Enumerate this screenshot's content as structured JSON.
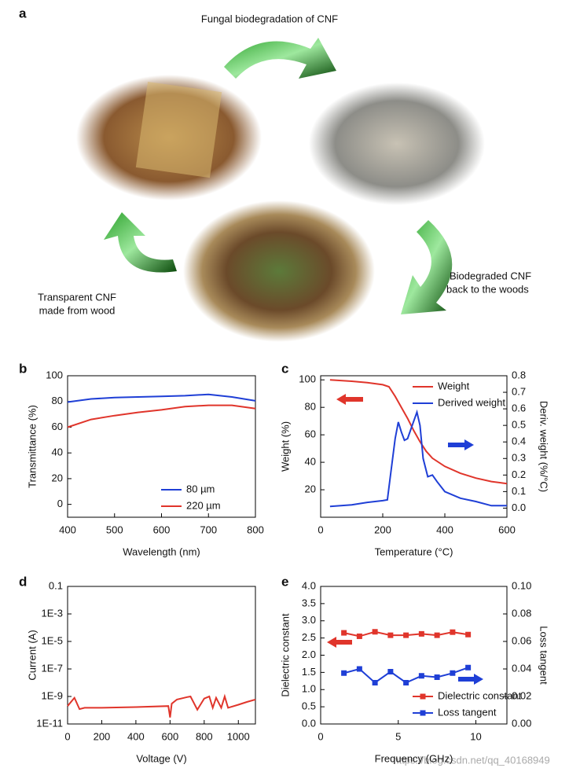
{
  "panel_a": {
    "label": "a",
    "top_caption": "Fungal biodegradation of CNF",
    "right_caption": [
      "Biodegraded CNF",
      "back to the woods"
    ],
    "left_caption": [
      "Transparent CNF",
      "made from wood"
    ]
  },
  "chart_data": [
    {
      "type": "line",
      "label": "b",
      "xlabel": "Wavelength (nm)",
      "ylabel": "Transmittance (%)",
      "x": [
        400,
        450,
        500,
        550,
        600,
        650,
        700,
        750,
        800
      ],
      "series": [
        {
          "name": "80 µm",
          "color": "#1f3fd6",
          "values": [
            79.5,
            82,
            83,
            83.5,
            84,
            84.5,
            85.5,
            83.5,
            80.5
          ]
        },
        {
          "name": "220 µm",
          "color": "#e0352b",
          "values": [
            60,
            66,
            69,
            71.5,
            73.5,
            76,
            77,
            77,
            74.5
          ]
        }
      ],
      "xlim": [
        400,
        800
      ],
      "xticks": [
        400,
        500,
        600,
        700,
        800
      ],
      "ylim": [
        -10,
        100
      ],
      "yticks": [
        0,
        20,
        40,
        60,
        80,
        100
      ],
      "legend": "lower right"
    },
    {
      "type": "line",
      "label": "c",
      "xlabel": "Temperature (°C)",
      "ylabel": "Weight (%)",
      "y2label": "Deriv. weight (%/°C)",
      "series": [
        {
          "name": "Weight",
          "color": "#e0352b",
          "x": [
            30,
            100,
            150,
            200,
            220,
            240,
            260,
            280,
            300,
            320,
            340,
            360,
            400,
            450,
            500,
            550,
            600
          ],
          "values": [
            100,
            99,
            98,
            96.5,
            95,
            88,
            80,
            72,
            63,
            55,
            48,
            43,
            37,
            32,
            28.5,
            26,
            24.5
          ]
        },
        {
          "name": "Derived weight",
          "color": "#1f3fd6",
          "axis": "y2",
          "x": [
            30,
            100,
            150,
            200,
            215,
            225,
            240,
            250,
            260,
            270,
            280,
            295,
            310,
            320,
            330,
            345,
            360,
            375,
            400,
            450,
            500,
            550,
            600
          ],
          "values": [
            0.01,
            0.02,
            0.035,
            0.045,
            0.05,
            0.2,
            0.42,
            0.52,
            0.46,
            0.41,
            0.42,
            0.5,
            0.58,
            0.5,
            0.3,
            0.19,
            0.2,
            0.16,
            0.1,
            0.06,
            0.04,
            0.015,
            0.015
          ]
        }
      ],
      "xlim": [
        0,
        600
      ],
      "xticks": [
        0,
        200,
        400,
        600
      ],
      "ylim": [
        0,
        103
      ],
      "yticks": [
        20,
        40,
        60,
        80,
        100
      ],
      "y2lim": [
        -0.055,
        0.8
      ],
      "y2ticks": [
        {
          "value": 0,
          "label": "0.0"
        },
        0.1,
        0.2,
        0.3,
        0.4,
        0.5,
        0.6,
        0.7,
        0.8
      ],
      "legend": "upper right"
    },
    {
      "type": "line",
      "label": "d",
      "xlabel": "Voltage (V)",
      "ylabel": "Current (A)",
      "ylog": true,
      "x": [
        0,
        40,
        70,
        100,
        200,
        400,
        590,
        600,
        610,
        640,
        700,
        720,
        760,
        800,
        830,
        850,
        870,
        900,
        920,
        940,
        1000,
        1050,
        1100
      ],
      "series": [
        {
          "name": null,
          "color": "#e0352b",
          "values": [
            2e-10,
            8e-10,
            1.2e-10,
            1.5e-10,
            1.5e-10,
            1.7e-10,
            2e-10,
            3e-11,
            3e-10,
            6e-10,
            9e-10,
            1e-09,
            1.1e-10,
            7e-10,
            1e-09,
            1.5e-10,
            8e-10,
            1.5e-10,
            1e-09,
            1.5e-10,
            2.5e-10,
            4e-10,
            6e-10
          ]
        }
      ],
      "xlim": [
        0,
        1100
      ],
      "xticks": [
        0,
        200,
        400,
        600,
        800,
        1000
      ],
      "ylim": [
        1e-11,
        0.1
      ],
      "yticks": [
        0.1,
        {
          "value": 0.001,
          "label": "1E-3"
        },
        {
          "value": 1e-05,
          "label": "1E-5"
        },
        {
          "value": 1e-07,
          "label": "1E-7"
        },
        {
          "value": 1e-09,
          "label": "1E-9"
        },
        {
          "value": 1e-11,
          "label": "1E-11"
        }
      ]
    },
    {
      "type": "line",
      "label": "e",
      "xlabel": "Frequency (GHz)",
      "ylabel": "Dielectric constant",
      "y2label": "Loss tangent",
      "x": [
        1.5,
        2.5,
        3.5,
        4.5,
        5.5,
        6.5,
        7.5,
        8.5,
        9.5
      ],
      "series": [
        {
          "name": "Dielectric constant",
          "color": "#e0352b",
          "marker": "square",
          "values": [
            2.65,
            2.55,
            2.68,
            2.58,
            2.58,
            2.62,
            2.58,
            2.67,
            2.6
          ]
        },
        {
          "name": "Loss tangent",
          "color": "#1f3fd6",
          "marker": "square",
          "axis": "y2",
          "values": [
            0.037,
            0.04,
            0.03,
            0.038,
            0.03,
            0.035,
            0.034,
            0.037,
            0.041
          ]
        }
      ],
      "xlim": [
        0,
        12
      ],
      "xticks": [
        0,
        5,
        10
      ],
      "ylim": [
        0,
        4
      ],
      "yticks": [
        {
          "value": 0,
          "label": "0.0"
        },
        0.5,
        {
          "value": 1,
          "label": "1.0"
        },
        1.5,
        {
          "value": 2,
          "label": "2.0"
        },
        2.5,
        {
          "value": 3,
          "label": "3.0"
        },
        3.5,
        {
          "value": 4,
          "label": "4.0"
        }
      ],
      "y2lim": [
        0,
        0.1
      ],
      "y2ticks": [
        {
          "value": 0,
          "label": "0.00"
        },
        {
          "value": 0.02,
          "label": "0.02"
        },
        {
          "value": 0.04,
          "label": "0.04"
        },
        {
          "value": 0.06,
          "label": "0.06"
        },
        {
          "value": 0.08,
          "label": "0.08"
        },
        {
          "value": 0.1,
          "label": "0.10"
        }
      ],
      "legend": "lower right"
    }
  ],
  "watermark": "https://blog.csdn.net/qq_40168949"
}
